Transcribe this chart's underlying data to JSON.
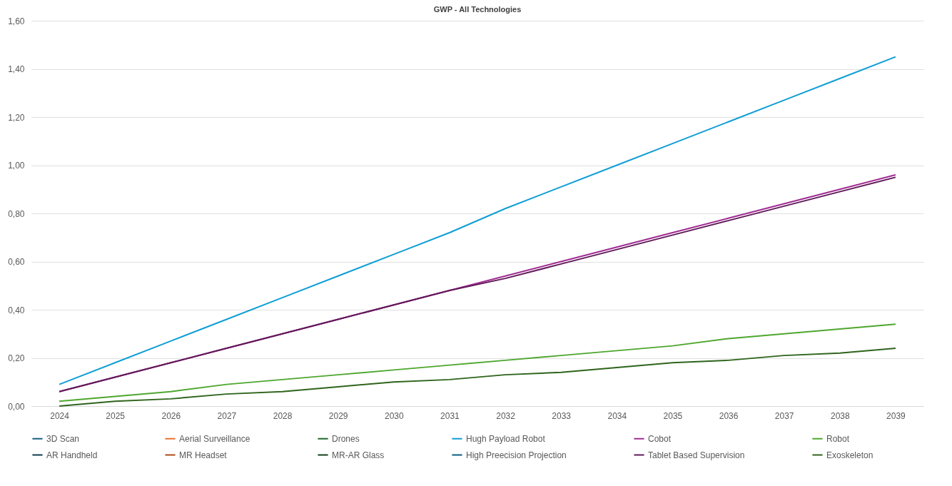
{
  "chart_data": {
    "type": "line",
    "title": "GWP - All Technologies",
    "categories": [
      "2024",
      "2025",
      "2026",
      "2027",
      "2028",
      "2029",
      "2030",
      "2031",
      "2032",
      "2033",
      "2034",
      "2035",
      "2036",
      "2037",
      "2038",
      "2039"
    ],
    "ylim": [
      0,
      1.6
    ],
    "yticks": [
      {
        "value": 0,
        "label": "0,00"
      },
      {
        "value": 0.2,
        "label": "0,20"
      },
      {
        "value": 0.4,
        "label": "0,40"
      },
      {
        "value": 0.6,
        "label": "0,60"
      },
      {
        "value": 0.8,
        "label": "0,80"
      },
      {
        "value": 1.0,
        "label": "1,00"
      },
      {
        "value": 1.2,
        "label": "1,20"
      },
      {
        "value": 1.4,
        "label": "1,40"
      },
      {
        "value": 1.6,
        "label": "1,60"
      }
    ],
    "grid": "y",
    "legend": "bottom",
    "marker": "none",
    "line_style": "solid",
    "series": [
      {
        "name": "3D Scan",
        "color": "#156082",
        "values": [
          null,
          null,
          null,
          null,
          null,
          null,
          null,
          null,
          null,
          null,
          null,
          null,
          null,
          null,
          null,
          null
        ]
      },
      {
        "name": "Aerial Surveillance",
        "color": "#e97132",
        "values": [
          null,
          null,
          null,
          null,
          null,
          null,
          null,
          null,
          null,
          null,
          null,
          null,
          null,
          null,
          null,
          null
        ]
      },
      {
        "name": "Drones",
        "color": "#196b24",
        "values": [
          null,
          null,
          null,
          null,
          null,
          null,
          null,
          null,
          null,
          null,
          null,
          null,
          null,
          null,
          null,
          null
        ]
      },
      {
        "name": "Hugh Payload Robot",
        "color": "#0f9ed5",
        "values": [
          0.09,
          0.18,
          0.27,
          0.36,
          0.45,
          0.54,
          0.63,
          0.72,
          0.82,
          0.91,
          1.0,
          1.09,
          1.18,
          1.27,
          1.36,
          1.45
        ]
      },
      {
        "name": "Cobot",
        "color": "#a02b93",
        "values": [
          0.06,
          0.12,
          0.18,
          0.24,
          0.3,
          0.36,
          0.42,
          0.48,
          0.54,
          0.6,
          0.66,
          0.72,
          0.78,
          0.84,
          0.9,
          0.96
        ]
      },
      {
        "name": "Robot",
        "color": "#4ea72e",
        "values": [
          0.02,
          0.04,
          0.06,
          0.09,
          0.11,
          0.13,
          0.15,
          0.17,
          0.19,
          0.21,
          0.23,
          0.25,
          0.28,
          0.3,
          0.32,
          0.34
        ]
      },
      {
        "name": "AR Handheld",
        "color": "#0d3a4f",
        "values": [
          null,
          null,
          null,
          null,
          null,
          null,
          null,
          null,
          null,
          null,
          null,
          null,
          null,
          null,
          null,
          null
        ]
      },
      {
        "name": "MR Headset",
        "color": "#ae4b16",
        "values": [
          null,
          null,
          null,
          null,
          null,
          null,
          null,
          null,
          null,
          null,
          null,
          null,
          null,
          null,
          null,
          null
        ]
      },
      {
        "name": "MR-AR Glass",
        "color": "#0f4016",
        "values": [
          null,
          null,
          null,
          null,
          null,
          null,
          null,
          null,
          null,
          null,
          null,
          null,
          null,
          null,
          null,
          null
        ]
      },
      {
        "name": "High Preecision Projection",
        "color": "#095e80",
        "values": [
          null,
          null,
          null,
          null,
          null,
          null,
          null,
          null,
          null,
          null,
          null,
          null,
          null,
          null,
          null,
          null
        ]
      },
      {
        "name": "Tablet Based Supervision",
        "color": "#601a58",
        "values": [
          0.06,
          0.12,
          0.18,
          0.24,
          0.3,
          0.36,
          0.42,
          0.48,
          0.53,
          0.59,
          0.65,
          0.71,
          0.77,
          0.83,
          0.89,
          0.95
        ]
      },
      {
        "name": "Exoskeleton",
        "color": "#2e641c",
        "values": [
          0,
          0.02,
          0.03,
          0.05,
          0.06,
          0.08,
          0.1,
          0.11,
          0.13,
          0.14,
          0.16,
          0.18,
          0.19,
          0.21,
          0.22,
          0.24
        ]
      }
    ]
  }
}
